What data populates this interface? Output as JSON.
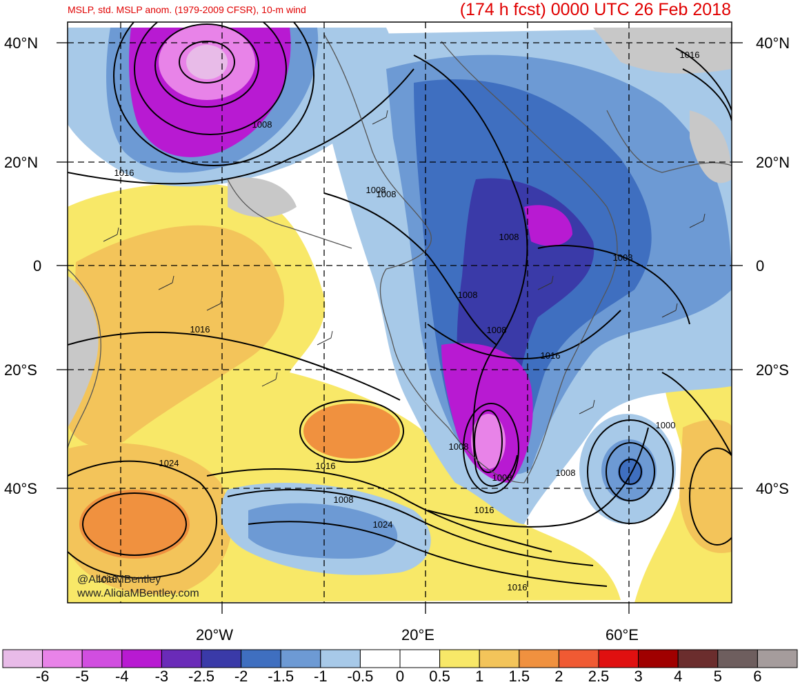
{
  "header": {
    "left_title": "MSLP, std. MSLP anom. (1979-2009 CFSR), 10-m wind",
    "right_title": "(174 h fcst) 0000 UTC 26 Feb 2018"
  },
  "axes": {
    "lat_labels": [
      "40°N",
      "20°N",
      "0",
      "20°S",
      "40°S"
    ],
    "lon_labels": [
      "20°W",
      "20°E",
      "60°E"
    ]
  },
  "credits": {
    "handle": "@AliciaMBentley",
    "website": "www.AliciaMBentley.com"
  },
  "isobar_labels": [
    "1016",
    "1008",
    "1016",
    "1008",
    "1008",
    "1008",
    "1008",
    "1008",
    "1016",
    "1008",
    "1008",
    "1024",
    "1016",
    "1008",
    "1024",
    "1016",
    "1008",
    "1000",
    "1016",
    "1016",
    "1016",
    "1008"
  ],
  "colorbar": {
    "labels": [
      "-6",
      "-5",
      "-4",
      "-3",
      "-2.5",
      "-2",
      "-1.5",
      "-1",
      "-0.5",
      "0",
      "0.5",
      "1",
      "1.5",
      "2",
      "2.5",
      "3",
      "4",
      "5",
      "6"
    ],
    "colors": [
      "#e8bbe8",
      "#e883e8",
      "#d14ee0",
      "#b81ad2",
      "#6a2bb8",
      "#3a3aa8",
      "#3f6fc0",
      "#6d9ad4",
      "#a7c9e8",
      "#ffffff",
      "#ffffff",
      "#f8e868",
      "#f3c45a",
      "#f0913f",
      "#f05a33",
      "#e01010",
      "#a00000",
      "#6b2d2d",
      "#6e5e5e",
      "#a59c9c"
    ]
  },
  "palette": {
    "title_red": "#e00000",
    "land_gray": "#c8c8c8",
    "contour": "#000000"
  }
}
